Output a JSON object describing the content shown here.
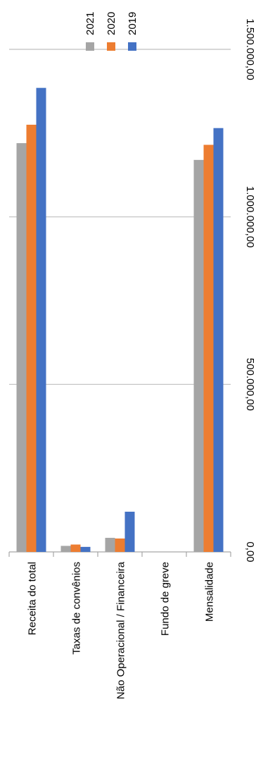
{
  "chart_data": {
    "type": "bar",
    "orientation": "horizontal",
    "categories": [
      "Receita do total",
      "Taxas de convênios",
      "Não Operacional / Financeira",
      "Fundo de greve",
      "Mensalidade"
    ],
    "series": [
      {
        "name": "2021",
        "color": "#a5a5a5",
        "values": [
          1220000,
          18000,
          42000,
          0,
          1170000
        ]
      },
      {
        "name": "2020",
        "color": "#ed7d31",
        "values": [
          1275000,
          22000,
          40000,
          0,
          1215000
        ]
      },
      {
        "name": "2019",
        "color": "#4472c4",
        "values": [
          1385000,
          15000,
          120000,
          0,
          1265000
        ]
      }
    ],
    "xlim": [
      0,
      1500000
    ],
    "ticks": [
      0,
      500000,
      1000000,
      1500000
    ],
    "tick_labels": [
      "0,00",
      "500.000,00",
      "1.000.000,00",
      "1.500.000,00"
    ],
    "grid": true,
    "legend_position": "top",
    "title": "",
    "xlabel": "",
    "ylabel": ""
  }
}
